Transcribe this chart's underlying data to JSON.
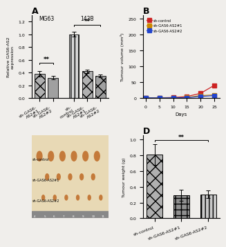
{
  "bg_color": "#f0eeeb",
  "panel_A": {
    "title": "A",
    "mg63_label": "MG63",
    "b143_label": "143B",
    "categories": [
      "sh-GAS6-AS2#1",
      "sh-GAS6-AS2#2",
      "sh-control",
      "sh-GAS6-AS2#1",
      "sh-GAS6-AS2#2"
    ],
    "values": [
      0.38,
      0.32,
      1.0,
      0.42,
      0.35
    ],
    "errors": [
      0.04,
      0.03,
      0.04,
      0.03,
      0.025
    ],
    "hatch_patterns": [
      "xx",
      "==",
      "|||",
      "xx",
      "xx"
    ],
    "bar_colors": [
      "#aaaaaa",
      "#999999",
      "#d8d8d8",
      "#aaaaaa",
      "#999999"
    ],
    "ylim": [
      0.0,
      1.3
    ],
    "yticks": [
      0.0,
      0.2,
      0.4,
      0.6,
      0.8,
      1.0,
      1.2
    ],
    "ylabel": "Relative GAS6-AS2 expression",
    "significance": "**"
  },
  "panel_B": {
    "title": "B",
    "xlabel": "Days",
    "ylabel": "Tumour volume (mm³)",
    "ylim": [
      0,
      260
    ],
    "yticks": [
      0,
      50,
      100,
      150,
      200,
      250
    ],
    "xlim": [
      0,
      27
    ],
    "xticks": [
      0,
      5,
      10,
      15,
      20,
      25
    ],
    "days": [
      0,
      5,
      10,
      15,
      20,
      25
    ],
    "control_values": [
      1,
      1,
      2,
      5,
      15,
      40
    ],
    "sh1_values": [
      1,
      1,
      1,
      2,
      8,
      10
    ],
    "sh2_values": [
      1,
      0.5,
      1,
      1.5,
      5,
      8
    ],
    "control_errors": [
      0.5,
      0.5,
      0.5,
      1,
      2,
      5
    ],
    "sh1_errors": [
      0.5,
      0.5,
      0.5,
      0.5,
      1,
      1.5
    ],
    "sh2_errors": [
      0.5,
      0.5,
      0.5,
      0.5,
      1,
      1
    ],
    "control_color": "#cc2222",
    "sh1_color": "#cc8800",
    "sh2_color": "#2244cc",
    "legend_labels": [
      "sh-control",
      "sh-GAS6-AS2#1",
      "sh-GAS6-AS2#2"
    ]
  },
  "panel_D": {
    "title": "D",
    "ylabel": "Tumour weight (g)",
    "categories": [
      "sh-control",
      "sh-GAS6-AS2#1",
      "sh-GAS6-AS2#2"
    ],
    "values": [
      0.805,
      0.295,
      0.305
    ],
    "errors": [
      0.13,
      0.07,
      0.05
    ],
    "ylim": [
      0.0,
      1.05
    ],
    "yticks": [
      0.0,
      0.2,
      0.4,
      0.6,
      0.8,
      1.0
    ],
    "hatch_patterns": [
      "xx",
      "++",
      "|||"
    ],
    "bar_colors": [
      "#aaaaaa",
      "#909090",
      "#c0c0c0"
    ],
    "significance": "**"
  }
}
